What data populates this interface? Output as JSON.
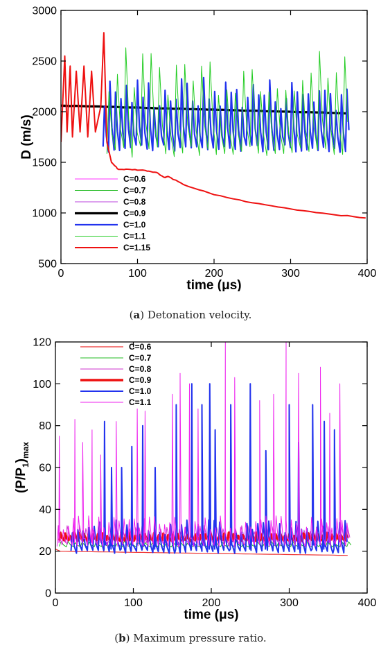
{
  "captions": {
    "a": {
      "label": "a",
      "text": ") Detonation velocity."
    },
    "b": {
      "label": "b",
      "text": ") Maximum pressure ratio."
    }
  },
  "chart_data": [
    {
      "type": "line",
      "xlabel": "time (μs)",
      "ylabel": "D (m/s)",
      "xlim": [
        0,
        400
      ],
      "ylim": [
        500,
        3000
      ],
      "xticks": [
        0,
        100,
        200,
        300,
        400
      ],
      "yticks": [
        500,
        1000,
        1500,
        2000,
        2500,
        3000
      ],
      "grid": false,
      "legend_position": "bottom-left",
      "series": [
        {
          "name": "C=0.6",
          "color": "#ff33ff",
          "width": 1,
          "kind": "flat",
          "start": 2060,
          "base": 2050,
          "x_end": 60
        },
        {
          "name": "C=0.7",
          "color": "#22bb22",
          "width": 1,
          "kind": "flat",
          "start": 2070,
          "base": 2055,
          "x_end": 60
        },
        {
          "name": "C=0.8",
          "color": "#bb44dd",
          "width": 1,
          "kind": "flat",
          "start": 2065,
          "base": 2050,
          "x_end": 60
        },
        {
          "name": "C=0.9",
          "color": "#000000",
          "width": 3.2,
          "kind": "flat",
          "start": 2060,
          "base": 2060,
          "base_end": 1985,
          "x_end": 372
        },
        {
          "name": "C=1.0",
          "color": "#2233ee",
          "width": 2.2,
          "kind": "osc",
          "x_start": 55,
          "x_end": 375,
          "period": 7.2,
          "low": 1600,
          "high": 2350
        },
        {
          "name": "C=1.1",
          "color": "#22cc22",
          "width": 1,
          "kind": "osc",
          "x_start": 60,
          "x_end": 378,
          "period": 11,
          "low": 1550,
          "high": 2650
        },
        {
          "name": "C=1.15",
          "color": "#ee1111",
          "width": 2,
          "kind": "decay",
          "points": [
            [
              0,
              1700
            ],
            [
              5,
              2550
            ],
            [
              8,
              1800
            ],
            [
              12,
              2450
            ],
            [
              15,
              1750
            ],
            [
              20,
              2400
            ],
            [
              25,
              1800
            ],
            [
              30,
              2450
            ],
            [
              35,
              1750
            ],
            [
              40,
              2400
            ],
            [
              45,
              1800
            ],
            [
              52,
              2050
            ],
            [
              56,
              2780
            ],
            [
              60,
              1700
            ],
            [
              66,
              1500
            ],
            [
              75,
              1430
            ],
            [
              90,
              1430
            ],
            [
              110,
              1420
            ],
            [
              125,
              1400
            ],
            [
              135,
              1350
            ],
            [
              140,
              1360
            ],
            [
              160,
              1280
            ],
            [
              200,
              1180
            ],
            [
              250,
              1100
            ],
            [
              300,
              1040
            ],
            [
              350,
              990
            ],
            [
              398,
              950
            ]
          ]
        }
      ]
    },
    {
      "type": "line",
      "xlabel": "time (μs)",
      "ylabel": "(P/P",
      "ylabel_sub1": "1",
      "ylabel_mid": ")",
      "ylabel_sub2": "max",
      "xlim": [
        0,
        400
      ],
      "ylim": [
        0,
        120
      ],
      "xticks": [
        0,
        100,
        200,
        300,
        400
      ],
      "yticks": [
        0,
        20,
        40,
        60,
        80,
        100,
        120
      ],
      "grid": false,
      "legend_position": "top-left",
      "series": [
        {
          "name": "C=0.6",
          "color": "#ee3333",
          "width": 1.2,
          "kind": "flat",
          "start": 21,
          "base": 20,
          "base_end": 18,
          "x_end": 375
        },
        {
          "name": "C=0.7",
          "color": "#22bb22",
          "width": 1,
          "kind": "osc",
          "x_start": 5,
          "x_end": 375,
          "period": 9,
          "low": 22,
          "high": 25
        },
        {
          "name": "C=0.8",
          "color": "#cc33cc",
          "width": 1,
          "kind": "osc",
          "x_start": 5,
          "x_end": 375,
          "period": 8,
          "low": 24,
          "high": 33
        },
        {
          "name": "C=0.9",
          "color": "#ee1111",
          "width": 3.5,
          "kind": "osc",
          "x_start": 5,
          "x_end": 375,
          "period": 6,
          "low": 25,
          "high": 29
        },
        {
          "name": "C=1.0",
          "color": "#2233ee",
          "width": 2,
          "kind": "spikes",
          "x_start": 20,
          "x_end": 375,
          "period": 7,
          "low": 19,
          "high": 35,
          "spikes": [
            [
              63,
              82
            ],
            [
              72,
              60
            ],
            [
              85,
              60
            ],
            [
              98,
              70
            ],
            [
              112,
              80
            ],
            [
              128,
              60
            ],
            [
              155,
              90
            ],
            [
              175,
              100
            ],
            [
              188,
              90
            ],
            [
              198,
              100
            ],
            [
              205,
              78
            ],
            [
              225,
              90
            ],
            [
              250,
              100
            ],
            [
              270,
              68
            ],
            [
              300,
              90
            ],
            [
              312,
              72
            ],
            [
              330,
              90
            ],
            [
              345,
              82
            ],
            [
              358,
              78
            ]
          ]
        },
        {
          "name": "C=1.1",
          "color": "#ee22ee",
          "width": 1,
          "kind": "spikes",
          "x_start": 2,
          "x_end": 375,
          "period": 6.5,
          "low": 22,
          "high": 37,
          "spikes": [
            [
              5,
              75
            ],
            [
              25,
              83
            ],
            [
              35,
              72
            ],
            [
              47,
              78
            ],
            [
              58,
              66
            ],
            [
              78,
              82
            ],
            [
              105,
              88
            ],
            [
              115,
              87
            ],
            [
              150,
              95
            ],
            [
              160,
              105
            ],
            [
              172,
              100
            ],
            [
              183,
              88
            ],
            [
              218,
              120
            ],
            [
              230,
              103
            ],
            [
              262,
              92
            ],
            [
              280,
              95
            ],
            [
              296,
              120
            ],
            [
              312,
              105
            ],
            [
              340,
              108
            ],
            [
              352,
              86
            ],
            [
              365,
              100
            ]
          ]
        }
      ]
    }
  ]
}
